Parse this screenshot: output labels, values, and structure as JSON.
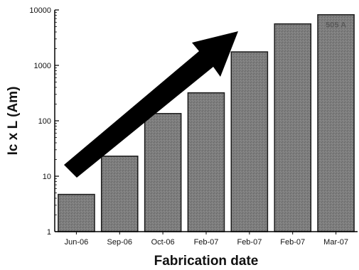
{
  "chart_data": {
    "type": "bar",
    "categories": [
      "Jun-06",
      "Sep-06",
      "Oct-06",
      "Feb-07",
      "Feb-07",
      "Feb-07",
      "Mar-07"
    ],
    "values": [
      4.7,
      23,
      135,
      320,
      1750,
      5600,
      8200
    ],
    "bar_labels_top": [
      "",
      "",
      "",
      "",
      "",
      "",
      "505 A"
    ],
    "bar_labels_bottom": [
      "",
      "",
      "",
      "",
      "",
      "",
      ""
    ],
    "xlabel": "Fabrication date",
    "ylabel": "Ic x L (Am)",
    "yscale": "log",
    "ylim": [
      1,
      10000
    ],
    "yticks": [
      1,
      10,
      100,
      1000,
      10000
    ],
    "ytick_labels": [
      "1",
      "10",
      "100",
      "1000",
      "10000"
    ],
    "grid": false,
    "colors": {
      "bar": "#7a7a7a",
      "bar_edge": "#1a1a1a",
      "arrow": "#000000"
    },
    "annotation": "arrow-upward-trend"
  }
}
